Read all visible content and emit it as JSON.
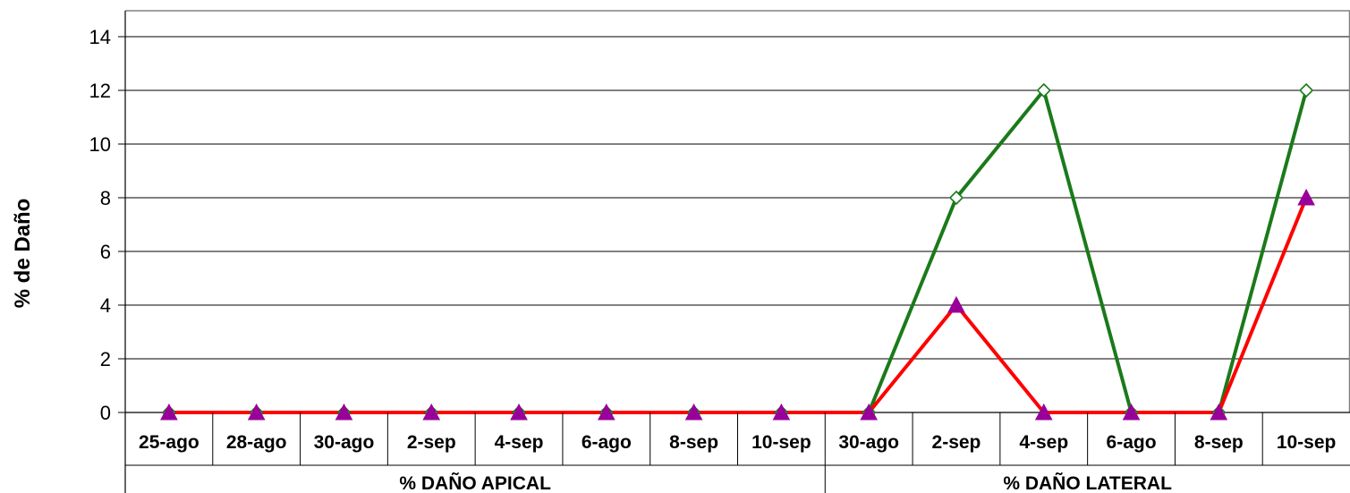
{
  "chart_data": {
    "type": "line",
    "title": "",
    "ylabel": "% de Daño",
    "xlabel": "",
    "ylim": [
      0,
      14
    ],
    "yticks": [
      0,
      2,
      4,
      6,
      8,
      10,
      12,
      14
    ],
    "grid": true,
    "categories": [
      "25-ago",
      "28-ago",
      "30-ago",
      "2-sep",
      "4-sep",
      "6-ago",
      "8-sep",
      "10-sep",
      "30-ago",
      "2-sep",
      "4-sep",
      "6-ago",
      "8-sep",
      "10-sep"
    ],
    "groups": [
      {
        "label": "% DAÑO APICAL",
        "count": 8
      },
      {
        "label": "% DAÑO LATERAL",
        "count": 6
      }
    ],
    "series": [
      {
        "color": "#1a7a1a",
        "marker": "diamond",
        "marker_fill": "#ffffff",
        "values": [
          0,
          0,
          0,
          0,
          0,
          0,
          0,
          0,
          0,
          8,
          12,
          0,
          0,
          12
        ]
      },
      {
        "color": "#ff0000",
        "marker": "triangle",
        "marker_fill": "#990099",
        "values": [
          0,
          0,
          0,
          0,
          0,
          0,
          0,
          0,
          0,
          4,
          0,
          0,
          0,
          8
        ]
      }
    ]
  }
}
